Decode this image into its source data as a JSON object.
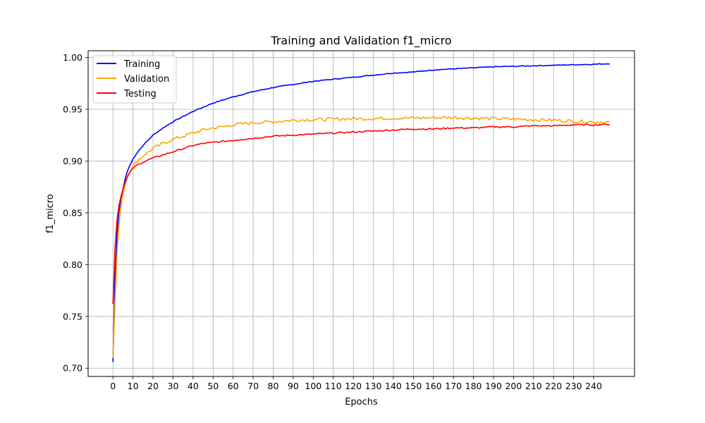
{
  "chart_data": {
    "type": "line",
    "title": "Training and Validation f1_micro",
    "xlabel": "Epochs",
    "ylabel": "f1_micro",
    "xlim": [
      -12.4,
      260.4
    ],
    "ylim": [
      0.692,
      1.0065
    ],
    "x_ticks": [
      0,
      10,
      20,
      30,
      40,
      50,
      60,
      70,
      80,
      90,
      100,
      110,
      120,
      130,
      140,
      150,
      160,
      170,
      180,
      190,
      200,
      210,
      220,
      230,
      240
    ],
    "y_ticks": [
      0.7,
      0.75,
      0.8,
      0.85,
      0.9,
      0.95,
      1.0
    ],
    "y_tick_labels": [
      "0.70",
      "0.75",
      "0.80",
      "0.85",
      "0.90",
      "0.95",
      "1.00"
    ],
    "grid": true,
    "legend_position": "top-left",
    "epochs": 248,
    "series": [
      {
        "name": "Training",
        "color": "#0000ff",
        "points": [
          [
            0,
            0.706
          ],
          [
            1,
            0.785
          ],
          [
            2,
            0.828
          ],
          [
            3,
            0.851
          ],
          [
            4,
            0.864
          ],
          [
            5,
            0.873
          ],
          [
            6,
            0.882
          ],
          [
            7,
            0.889
          ],
          [
            8,
            0.894
          ],
          [
            10,
            0.902
          ],
          [
            12,
            0.908
          ],
          [
            15,
            0.915
          ],
          [
            20,
            0.925
          ],
          [
            25,
            0.932
          ],
          [
            30,
            0.938
          ],
          [
            35,
            0.943
          ],
          [
            40,
            0.948
          ],
          [
            45,
            0.952
          ],
          [
            50,
            0.956
          ],
          [
            55,
            0.959
          ],
          [
            60,
            0.962
          ],
          [
            70,
            0.967
          ],
          [
            80,
            0.971
          ],
          [
            90,
            0.974
          ],
          [
            100,
            0.977
          ],
          [
            110,
            0.979
          ],
          [
            120,
            0.981
          ],
          [
            130,
            0.983
          ],
          [
            140,
            0.985
          ],
          [
            150,
            0.986
          ],
          [
            160,
            0.988
          ],
          [
            170,
            0.989
          ],
          [
            180,
            0.99
          ],
          [
            190,
            0.991
          ],
          [
            200,
            0.9915
          ],
          [
            210,
            0.992
          ],
          [
            220,
            0.9925
          ],
          [
            230,
            0.993
          ],
          [
            240,
            0.9935
          ],
          [
            248,
            0.994
          ]
        ]
      },
      {
        "name": "Validation",
        "color": "#ffa500",
        "points": [
          [
            0,
            0.71
          ],
          [
            1,
            0.762
          ],
          [
            2,
            0.81
          ],
          [
            3,
            0.838
          ],
          [
            4,
            0.855
          ],
          [
            5,
            0.867
          ],
          [
            6,
            0.876
          ],
          [
            7,
            0.883
          ],
          [
            8,
            0.888
          ],
          [
            10,
            0.895
          ],
          [
            12,
            0.9
          ],
          [
            15,
            0.905
          ],
          [
            20,
            0.912
          ],
          [
            25,
            0.917
          ],
          [
            30,
            0.921
          ],
          [
            35,
            0.924
          ],
          [
            40,
            0.927
          ],
          [
            45,
            0.93
          ],
          [
            50,
            0.932
          ],
          [
            55,
            0.933
          ],
          [
            60,
            0.935
          ],
          [
            70,
            0.937
          ],
          [
            80,
            0.938
          ],
          [
            90,
            0.9395
          ],
          [
            100,
            0.94
          ],
          [
            110,
            0.9405
          ],
          [
            120,
            0.941
          ],
          [
            130,
            0.941
          ],
          [
            140,
            0.9415
          ],
          [
            150,
            0.9415
          ],
          [
            160,
            0.942
          ],
          [
            170,
            0.942
          ],
          [
            180,
            0.9415
          ],
          [
            190,
            0.941
          ],
          [
            200,
            0.9405
          ],
          [
            210,
            0.94
          ],
          [
            220,
            0.9395
          ],
          [
            230,
            0.9385
          ],
          [
            240,
            0.938
          ],
          [
            248,
            0.9375
          ]
        ]
      },
      {
        "name": "Testing",
        "color": "#ff0000",
        "points": [
          [
            0,
            0.762
          ],
          [
            1,
            0.815
          ],
          [
            2,
            0.843
          ],
          [
            3,
            0.857
          ],
          [
            4,
            0.866
          ],
          [
            5,
            0.873
          ],
          [
            6,
            0.879
          ],
          [
            7,
            0.884
          ],
          [
            8,
            0.888
          ],
          [
            10,
            0.893
          ],
          [
            12,
            0.896
          ],
          [
            15,
            0.899
          ],
          [
            20,
            0.903
          ],
          [
            25,
            0.906
          ],
          [
            30,
            0.909
          ],
          [
            35,
            0.912
          ],
          [
            40,
            0.915
          ],
          [
            45,
            0.917
          ],
          [
            50,
            0.918
          ],
          [
            55,
            0.919
          ],
          [
            60,
            0.92
          ],
          [
            70,
            0.922
          ],
          [
            80,
            0.924
          ],
          [
            90,
            0.925
          ],
          [
            100,
            0.926
          ],
          [
            110,
            0.927
          ],
          [
            120,
            0.928
          ],
          [
            130,
            0.929
          ],
          [
            140,
            0.93
          ],
          [
            150,
            0.931
          ],
          [
            160,
            0.931
          ],
          [
            170,
            0.932
          ],
          [
            180,
            0.932
          ],
          [
            190,
            0.933
          ],
          [
            200,
            0.933
          ],
          [
            210,
            0.934
          ],
          [
            220,
            0.934
          ],
          [
            230,
            0.935
          ],
          [
            240,
            0.935
          ],
          [
            248,
            0.9355
          ]
        ]
      }
    ]
  }
}
